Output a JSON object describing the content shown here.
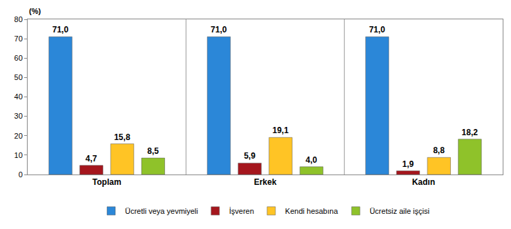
{
  "chart_data": {
    "type": "bar",
    "ylabel": "(%)",
    "categories": [
      "Toplam",
      "Erkek",
      "Kadın"
    ],
    "series": [
      {
        "name": "Ücretli veya yevmiyeli",
        "color": "#2b87d8",
        "values": [
          71.0,
          71.0,
          71.0
        ],
        "value_labels": [
          "71,0",
          "71,0",
          "71,0"
        ]
      },
      {
        "name": "İşveren",
        "color": "#a5161d",
        "values": [
          4.7,
          5.9,
          1.9
        ],
        "value_labels": [
          "4,7",
          "5,9",
          "1,9"
        ]
      },
      {
        "name": "Kendi hesabına",
        "color": "#ffc425",
        "values": [
          15.8,
          19.1,
          8.8
        ],
        "value_labels": [
          "15,8",
          "19,1",
          "8,8"
        ]
      },
      {
        "name": "Ücretsiz aile işçisi",
        "color": "#8fc22a",
        "values": [
          8.5,
          4.0,
          18.2
        ],
        "value_labels": [
          "8,5",
          "4,0",
          "18,2"
        ]
      }
    ],
    "ylim": [
      0,
      80
    ],
    "yticks": [
      0,
      10,
      20,
      30,
      40,
      50,
      60,
      70,
      80
    ],
    "grid": false,
    "legend": "bottom",
    "data_labels": true
  }
}
